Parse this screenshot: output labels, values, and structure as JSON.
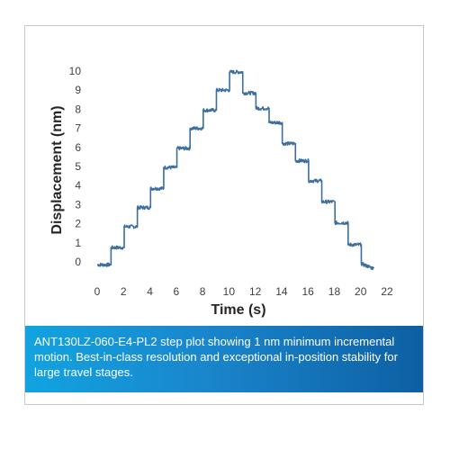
{
  "chart_data": {
    "type": "line",
    "xlabel": "Time (s)",
    "ylabel": "Displacement (nm)",
    "xlim": [
      0,
      22
    ],
    "ylim": [
      0,
      10
    ],
    "x_ticks": [
      0,
      2,
      4,
      6,
      8,
      10,
      12,
      14,
      16,
      18,
      20,
      22
    ],
    "y_ticks": [
      0,
      1,
      2,
      3,
      4,
      5,
      6,
      7,
      8,
      9,
      10
    ],
    "grid": false,
    "line_color": "#3c6e9e",
    "series": [
      {
        "x": [
          0,
          1.05,
          1.05,
          2.05,
          2.05,
          3.05,
          3.05,
          4.05,
          4.05,
          5.05,
          5.05,
          6.05,
          6.05,
          7.05,
          7.05,
          8.05,
          8.05,
          9.05,
          9.05,
          10.05,
          10.05,
          11.05,
          11.05,
          12.05,
          12.05,
          13.05,
          13.05,
          14.05,
          14.05,
          15.05,
          15.05,
          16.05,
          16.05,
          17.05,
          17.05,
          18.05,
          18.05,
          19.05,
          19.05,
          20.05,
          20.05,
          21.0
        ],
        "y": [
          -0.15,
          -0.15,
          0.75,
          0.75,
          1.85,
          1.85,
          2.85,
          2.85,
          3.85,
          3.85,
          4.95,
          4.95,
          5.95,
          5.95,
          7.0,
          7.0,
          7.95,
          7.95,
          9.0,
          9.0,
          9.95,
          9.95,
          8.85,
          8.85,
          8.05,
          8.05,
          7.3,
          7.3,
          6.2,
          6.2,
          5.3,
          5.3,
          4.25,
          4.25,
          3.15,
          3.15,
          2.05,
          2.05,
          0.9,
          0.9,
          -0.1,
          -0.35
        ]
      }
    ]
  },
  "caption": "ANT130LZ-060-E4-PL2 step plot showing 1 nm minimum incremental motion.  Best-in-class resolution and exceptional in-position stability for large travel stages."
}
